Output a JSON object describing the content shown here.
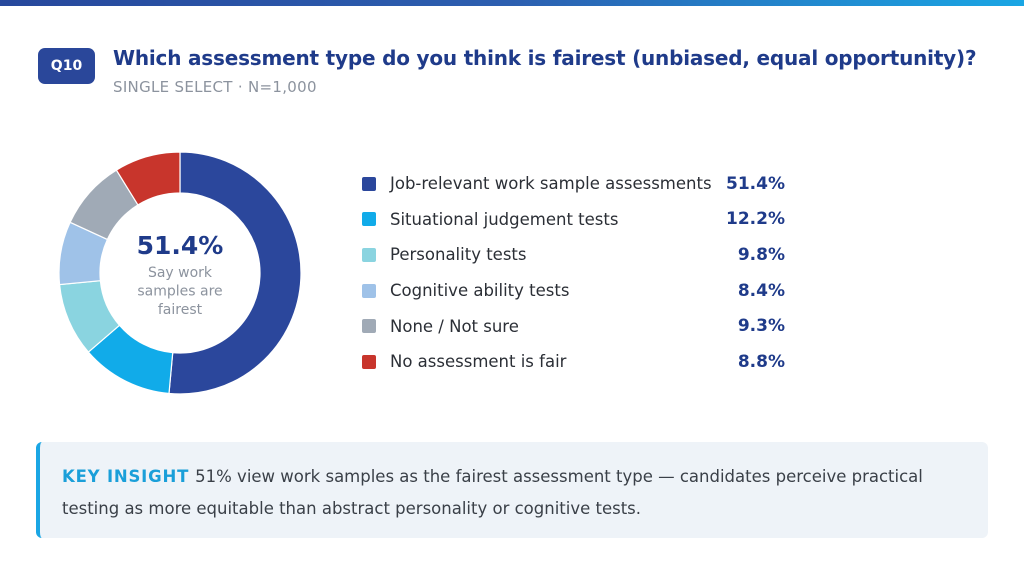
{
  "question": {
    "badge": "Q10",
    "title": "Which assessment type do you think is fairest (unbiased, equal opportunity)?",
    "subtitle": "SINGLE SELECT · N=1,000"
  },
  "center": {
    "value": "51.4%",
    "caption_lines": [
      "Say work",
      "samples are",
      "fairest"
    ]
  },
  "chart_data": {
    "type": "pie",
    "donut": true,
    "title": "",
    "categories": [
      "Job-relevant work sample assessments",
      "Situational judgement tests",
      "Personality tests",
      "Cognitive ability tests",
      "None / Not sure",
      "No assessment is fair"
    ],
    "values": [
      51.4,
      12.2,
      9.8,
      8.4,
      9.3,
      8.8
    ],
    "value_labels": [
      "51.4%",
      "12.2%",
      "9.8%",
      "8.4%",
      "9.3%",
      "8.8%"
    ],
    "colors": [
      "#2b479c",
      "#11abe9",
      "#8ad4e0",
      "#9fc2e8",
      "#a0aab6",
      "#c8352c"
    ],
    "legend_position": "right"
  },
  "insight": {
    "label": "KEY INSIGHT",
    "text": "51% view work samples as the fairest assessment type — candidates perceive practical testing as more equitable than abstract personality or cognitive tests."
  },
  "colors": {
    "accent": "#1f3b8a",
    "badge": "#2a479a",
    "insight_accent": "#1aa6e4",
    "insight_bg": "#eef3f8"
  }
}
